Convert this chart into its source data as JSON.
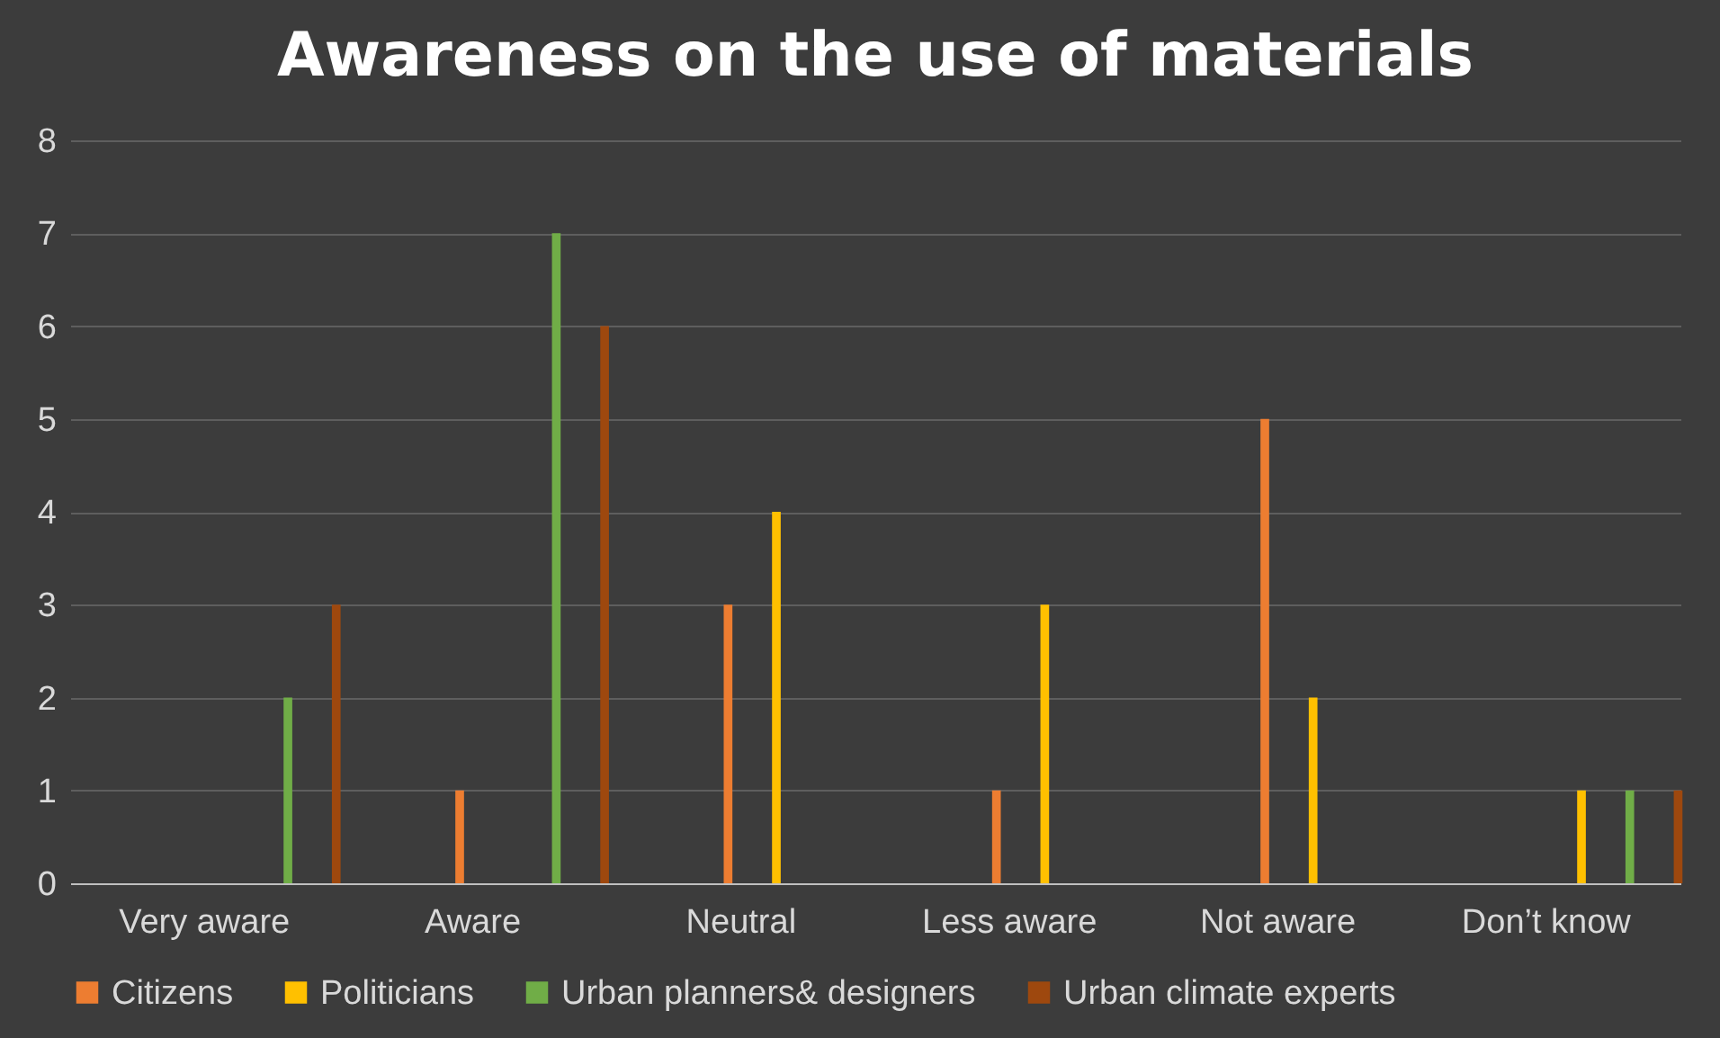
{
  "chart_data": {
    "type": "bar",
    "title": "Awareness on the use of materials",
    "categories": [
      "Very aware",
      "Aware",
      "Neutral",
      "Less aware",
      "Not aware",
      "Don’t know"
    ],
    "series": [
      {
        "name": "Citizens",
        "color": "#ed7d31",
        "values": [
          0,
          1,
          3,
          1,
          5,
          0
        ]
      },
      {
        "name": "Politicians",
        "color": "#ffc000",
        "values": [
          0,
          0,
          4,
          3,
          2,
          1
        ]
      },
      {
        "name": "Urban planners& designers",
        "color": "#70ad47",
        "values": [
          2,
          7,
          0,
          0,
          0,
          1
        ]
      },
      {
        "name": "Urban climate experts",
        "color": "#9e480e",
        "values": [
          3,
          6,
          0,
          0,
          0,
          1
        ]
      }
    ],
    "ylim": [
      0,
      8
    ],
    "yticks": [
      0,
      1,
      2,
      3,
      4,
      5,
      6,
      7,
      8
    ],
    "grid": "y",
    "legend": "bottom"
  }
}
